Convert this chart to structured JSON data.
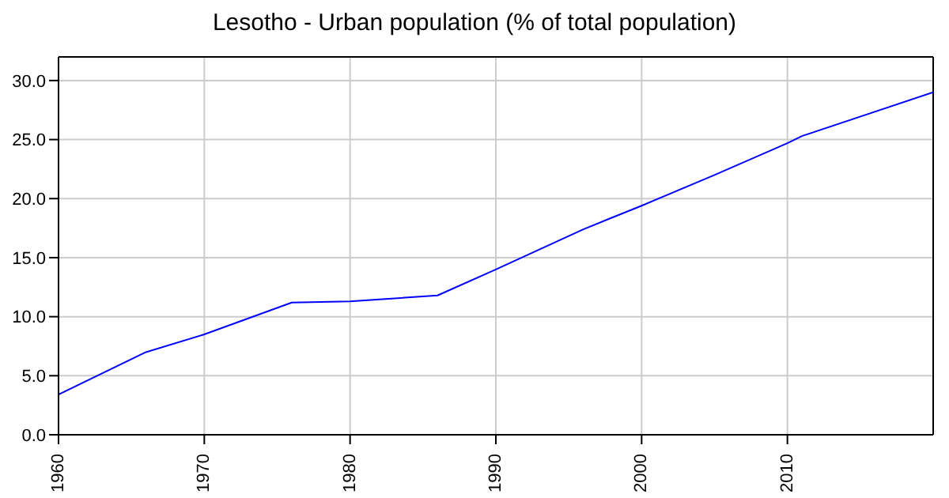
{
  "chart_data": {
    "type": "line",
    "title": "Lesotho - Urban population (% of total population)",
    "x": [
      1960,
      1966,
      1970,
      1976,
      1980,
      1986,
      1990,
      1996,
      2000,
      2005,
      2010,
      2011,
      2020
    ],
    "series": [
      {
        "color": "#0000ff",
        "values": [
          3.4,
          7.0,
          8.5,
          11.2,
          11.3,
          11.8,
          14.0,
          17.4,
          19.4,
          22.0,
          24.7,
          25.3,
          29.0
        ]
      }
    ],
    "xlim": [
      1960,
      2020
    ],
    "xticks": [
      1960,
      1970,
      1980,
      1990,
      2000,
      2010
    ],
    "ylim": [
      0,
      32
    ],
    "yticks": [
      {
        "value": 0,
        "label": "0.0"
      },
      {
        "value": 5,
        "label": "5.0"
      },
      {
        "value": 10,
        "label": "10.0"
      },
      {
        "value": 15,
        "label": "15.0"
      },
      {
        "value": 20,
        "label": "20.0"
      },
      {
        "value": 25,
        "label": "25.0"
      },
      {
        "value": 30,
        "label": "30.0"
      }
    ],
    "grid": true,
    "legend": false,
    "marker": "none"
  }
}
